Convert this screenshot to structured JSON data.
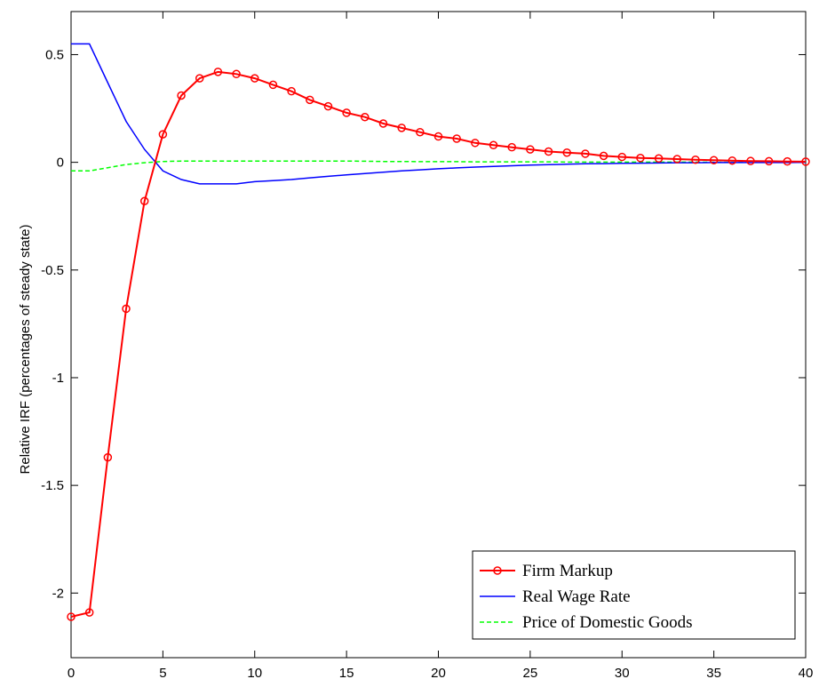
{
  "chart_data": {
    "type": "line",
    "xlabel": "",
    "ylabel": "Relative IRF (percentages of steady state)",
    "xlim": [
      0,
      40
    ],
    "ylim": [
      -2.3,
      0.7
    ],
    "x_ticks": [
      0,
      5,
      10,
      15,
      20,
      25,
      30,
      35,
      40
    ],
    "y_ticks": [
      -2,
      -1.5,
      -1,
      -0.5,
      0,
      0.5
    ],
    "x_tick_labels": [
      "0",
      "5",
      "10",
      "15",
      "20",
      "25",
      "30",
      "35",
      "40"
    ],
    "y_tick_labels": [
      "-2",
      "-1.5",
      "-1",
      "-0.5",
      "0",
      "0.5"
    ],
    "grid": false,
    "legend_position": "bottom-right",
    "series": [
      {
        "name": "Firm Markup",
        "color": "#ff0000",
        "line_style": "solid",
        "marker": "circle",
        "x": [
          0,
          1,
          2,
          3,
          4,
          5,
          6,
          7,
          8,
          9,
          10,
          11,
          12,
          13,
          14,
          15,
          16,
          17,
          18,
          19,
          20,
          21,
          22,
          23,
          24,
          25,
          26,
          27,
          28,
          29,
          30,
          31,
          32,
          33,
          34,
          35,
          36,
          37,
          38,
          39,
          40
        ],
        "y": [
          -2.11,
          -2.09,
          -1.37,
          -0.68,
          -0.18,
          0.13,
          0.31,
          0.39,
          0.42,
          0.41,
          0.39,
          0.36,
          0.33,
          0.29,
          0.26,
          0.23,
          0.21,
          0.18,
          0.16,
          0.14,
          0.12,
          0.11,
          0.09,
          0.08,
          0.07,
          0.06,
          0.05,
          0.045,
          0.04,
          0.03,
          0.025,
          0.02,
          0.018,
          0.015,
          0.012,
          0.01,
          0.008,
          0.006,
          0.005,
          0.004,
          0.003
        ]
      },
      {
        "name": "Real Wage Rate",
        "color": "#0000ff",
        "line_style": "solid",
        "marker": "none",
        "x": [
          0,
          1,
          2,
          3,
          4,
          5,
          6,
          7,
          8,
          9,
          10,
          11,
          12,
          13,
          14,
          15,
          16,
          17,
          18,
          19,
          20,
          21,
          22,
          23,
          24,
          25,
          26,
          27,
          28,
          29,
          30,
          31,
          32,
          33,
          34,
          35,
          36,
          37,
          38,
          39,
          40
        ],
        "y": [
          0.55,
          0.55,
          0.37,
          0.19,
          0.06,
          -0.04,
          -0.08,
          -0.1,
          -0.1,
          -0.1,
          -0.09,
          -0.085,
          -0.08,
          -0.072,
          -0.065,
          -0.058,
          -0.052,
          -0.046,
          -0.04,
          -0.035,
          -0.03,
          -0.026,
          -0.022,
          -0.019,
          -0.016,
          -0.013,
          -0.011,
          -0.009,
          -0.007,
          -0.006,
          -0.005,
          -0.004,
          -0.003,
          -0.002,
          -0.002,
          -0.001,
          -0.001,
          -0.001,
          -0.001,
          -0.001,
          0
        ]
      },
      {
        "name": "Price of Domestic Goods",
        "color": "#00ff00",
        "line_style": "dashed",
        "marker": "none",
        "x": [
          0,
          1,
          2,
          3,
          4,
          5,
          6,
          7,
          8,
          9,
          10,
          11,
          12,
          13,
          14,
          15,
          16,
          17,
          18,
          19,
          20,
          21,
          22,
          23,
          24,
          25,
          26,
          27,
          28,
          29,
          30,
          31,
          32,
          33,
          34,
          35,
          36,
          37,
          38,
          39,
          40
        ],
        "y": [
          -0.04,
          -0.04,
          -0.025,
          -0.01,
          -0.002,
          0.004,
          0.006,
          0.006,
          0.006,
          0.006,
          0.006,
          0.006,
          0.006,
          0.006,
          0.006,
          0.006,
          0.005,
          0.004,
          0.004,
          0.003,
          0.003,
          0.003,
          0.002,
          0.002,
          0.002,
          0.002,
          0.002,
          0.001,
          0.001,
          0.001,
          0.001,
          0.001,
          0.001,
          0.001,
          0.001,
          0,
          0,
          0,
          0,
          0,
          0
        ]
      }
    ]
  }
}
